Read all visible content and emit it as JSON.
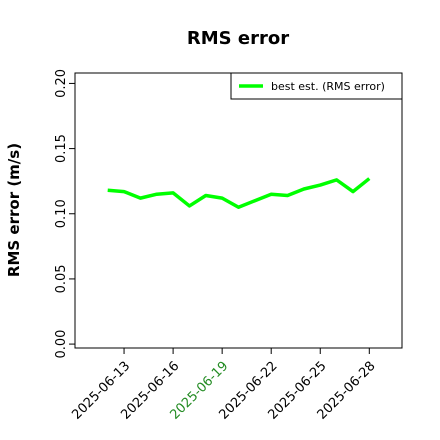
{
  "chart_data": {
    "type": "line",
    "title": "RMS error",
    "y_label": "RMS error (m/s)",
    "x": [
      "2025-06-12",
      "2025-06-13",
      "2025-06-14",
      "2025-06-15",
      "2025-06-16",
      "2025-06-17",
      "2025-06-18",
      "2025-06-19",
      "2025-06-20",
      "2025-06-21",
      "2025-06-22",
      "2025-06-23",
      "2025-06-24",
      "2025-06-25",
      "2025-06-26",
      "2025-06-27",
      "2025-06-28"
    ],
    "series": [
      {
        "name": "best est. (RMS error)",
        "color": "#00ff00",
        "values": [
          0.118,
          0.117,
          0.112,
          0.115,
          0.116,
          0.106,
          0.114,
          0.112,
          0.105,
          0.11,
          0.115,
          0.114,
          0.119,
          0.122,
          0.126,
          0.117,
          0.127
        ]
      }
    ],
    "xlim": [
      "2025-06-10",
      "2025-06-30"
    ],
    "xticks": [
      "2025-06-13",
      "2025-06-16",
      "2025-06-19",
      "2025-06-22",
      "2025-06-25",
      "2025-06-28"
    ],
    "highlight_xtick": "2025-06-19",
    "highlight_color": "#228b22",
    "ylim": [
      -0.003,
      0.208
    ],
    "yticks": [
      {
        "value": 0,
        "label": "0.00"
      },
      {
        "value": 0.05,
        "label": "0.05"
      },
      {
        "value": 0.1,
        "label": "0.10"
      },
      {
        "value": 0.15,
        "label": "0.15"
      },
      {
        "value": 0.2,
        "label": "0.20"
      }
    ],
    "legend": "upper right",
    "grid": false
  }
}
